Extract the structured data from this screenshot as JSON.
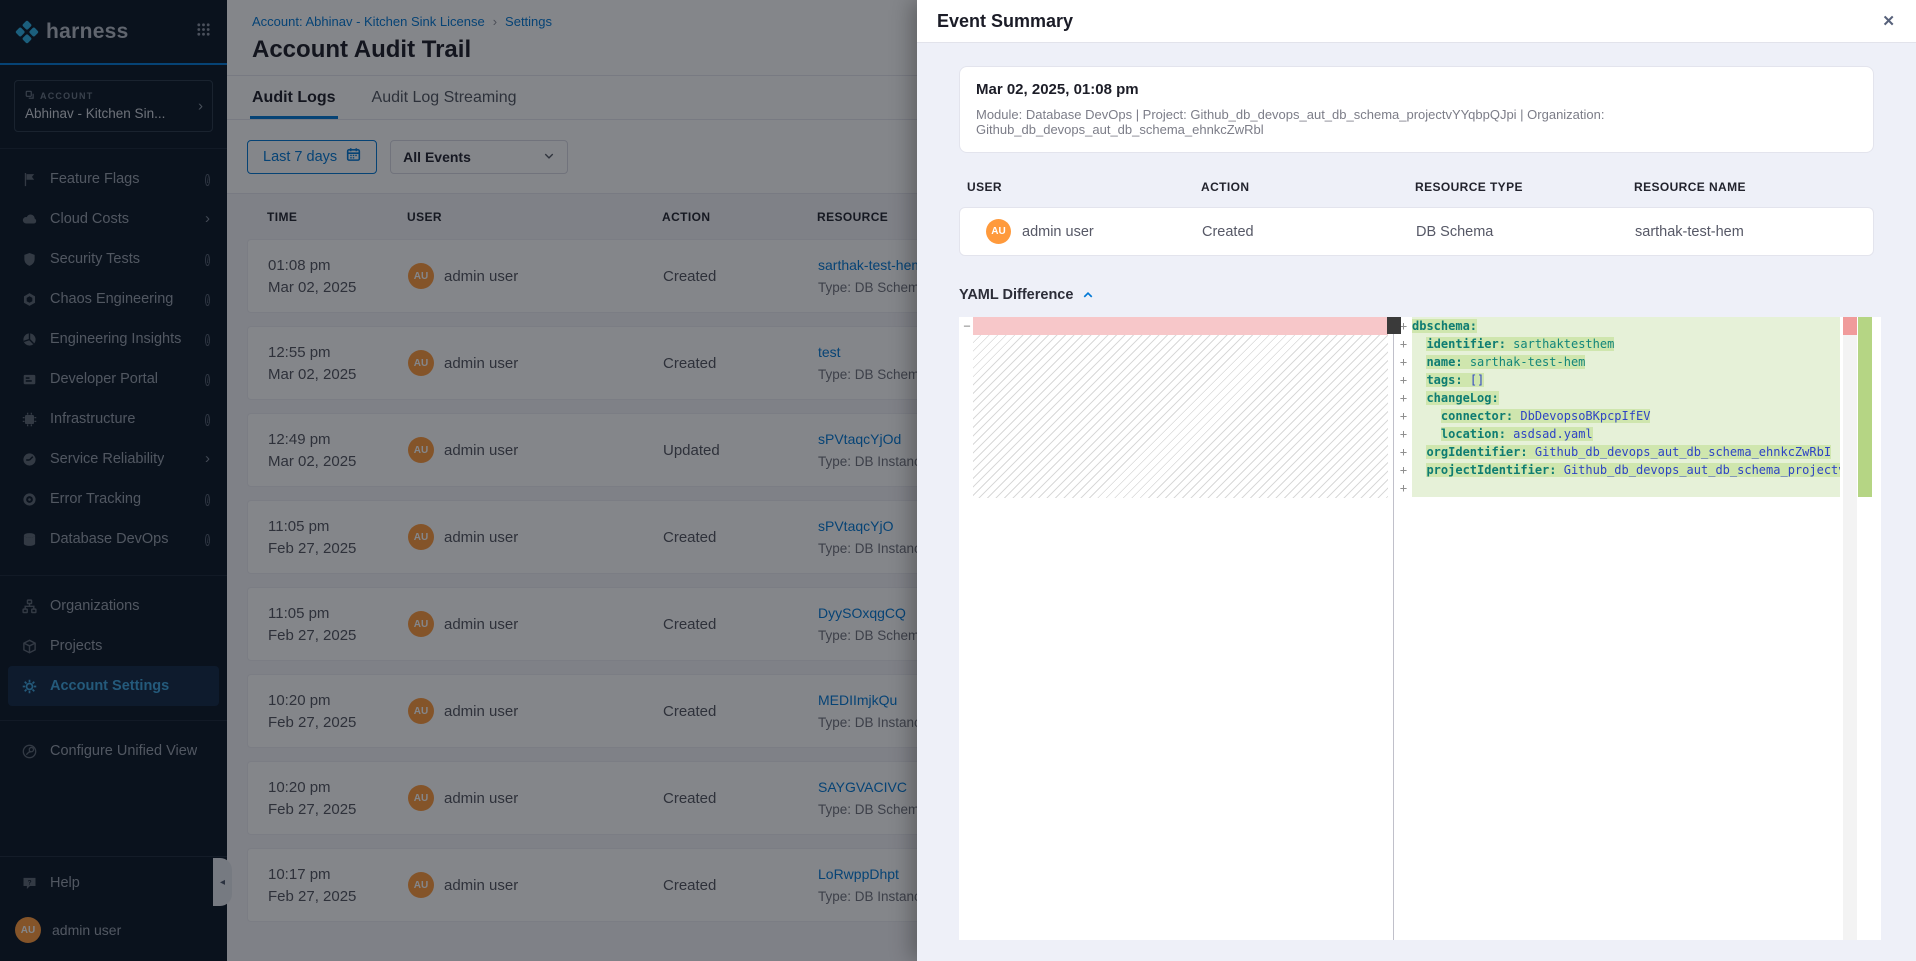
{
  "colors": {
    "accent": "#0278d5",
    "sidebar_bg": "#0a1625",
    "drawer_bg": "#eef0f8",
    "avatar_orange": "#ff9a3c",
    "diff_added_line": "#e6f1d8",
    "diff_added_chunk": "#cfe6ae",
    "diff_removed": "#f7c7c9",
    "ruler_red": "#f09b9b",
    "ruler_green": "#b5d584",
    "active_nav": "#3ea6e0"
  },
  "sidebar": {
    "logo_text": "harness",
    "account_chip": {
      "label": "ACCOUNT",
      "name": "Abhinav - Kitchen Sin...",
      "chevron": "›"
    },
    "nav": [
      {
        "label": "Feature Flags",
        "icon": "flag-icon",
        "trailing": "info"
      },
      {
        "label": "Cloud Costs",
        "icon": "cloud-icon",
        "trailing": "chevron"
      },
      {
        "label": "Security Tests",
        "icon": "shield-icon",
        "trailing": "info"
      },
      {
        "label": "Chaos Engineering",
        "icon": "chaos-icon",
        "trailing": "info"
      },
      {
        "label": "Engineering Insights",
        "icon": "insights-icon",
        "trailing": "info"
      },
      {
        "label": "Developer Portal",
        "icon": "portal-icon",
        "trailing": "info"
      },
      {
        "label": "Infrastructure",
        "icon": "infrastructure-icon",
        "trailing": "info"
      },
      {
        "label": "Service Reliability",
        "icon": "reliability-icon",
        "trailing": "chevron"
      },
      {
        "label": "Error Tracking",
        "icon": "error-tracking-icon",
        "trailing": "info"
      },
      {
        "label": "Database DevOps",
        "icon": "database-icon",
        "trailing": "info"
      }
    ],
    "settings_nav": [
      {
        "label": "Organizations",
        "icon": "organizations-icon",
        "active": false
      },
      {
        "label": "Projects",
        "icon": "projects-icon",
        "active": false
      },
      {
        "label": "Account Settings",
        "icon": "gear-icon",
        "active": true
      }
    ],
    "configure_label": "Configure Unified View",
    "help_label": "Help",
    "user": {
      "initials": "AU",
      "name": "admin user"
    }
  },
  "main": {
    "breadcrumb": {
      "account": "Account: Abhinav - Kitchen Sink License",
      "separator": "›",
      "settings": "Settings"
    },
    "title": "Account Audit Trail",
    "tabs": [
      {
        "label": "Audit Logs",
        "active": true
      },
      {
        "label": "Audit Log Streaming",
        "active": false
      }
    ],
    "filters": {
      "date_range": "Last 7 days",
      "date_icon": "calendar-icon",
      "events": "All Events",
      "events_icon": "chevron-down-icon"
    },
    "table": {
      "headers": [
        "TIME",
        "USER",
        "ACTION",
        "RESOURCE"
      ],
      "rows": [
        {
          "time": "01:08 pm",
          "date": "Mar 02, 2025",
          "user": "admin user",
          "initials": "AU",
          "action": "Created",
          "resource": "sarthak-test-hem",
          "resource_type": "Type: DB Schema"
        },
        {
          "time": "12:55 pm",
          "date": "Mar 02, 2025",
          "user": "admin user",
          "initials": "AU",
          "action": "Created",
          "resource": "test",
          "resource_type": "Type: DB Schema"
        },
        {
          "time": "12:49 pm",
          "date": "Mar 02, 2025",
          "user": "admin user",
          "initials": "AU",
          "action": "Updated",
          "resource": "sPVtaqcYjOd",
          "resource_type": "Type: DB Instance"
        },
        {
          "time": "11:05 pm",
          "date": "Feb 27, 2025",
          "user": "admin user",
          "initials": "AU",
          "action": "Created",
          "resource": "sPVtaqcYjO",
          "resource_type": "Type: DB Instance"
        },
        {
          "time": "11:05 pm",
          "date": "Feb 27, 2025",
          "user": "admin user",
          "initials": "AU",
          "action": "Created",
          "resource": "DyySOxqgCQ",
          "resource_type": "Type: DB Schema"
        },
        {
          "time": "10:20 pm",
          "date": "Feb 27, 2025",
          "user": "admin user",
          "initials": "AU",
          "action": "Created",
          "resource": "MEDIImjkQu",
          "resource_type": "Type: DB Instance"
        },
        {
          "time": "10:20 pm",
          "date": "Feb 27, 2025",
          "user": "admin user",
          "initials": "AU",
          "action": "Created",
          "resource": "SAYGVACIVC",
          "resource_type": "Type: DB Schema"
        },
        {
          "time": "10:17 pm",
          "date": "Feb 27, 2025",
          "user": "admin user",
          "initials": "AU",
          "action": "Created",
          "resource": "LoRwppDhpt",
          "resource_type": "Type: DB Instance"
        }
      ]
    }
  },
  "drawer": {
    "title": "Event Summary",
    "close_icon": "✕",
    "event": {
      "datetime": "Mar 02, 2025, 01:08 pm",
      "meta": "Module: Database DevOps | Project: Github_db_devops_aut_db_schema_projectvYYqbpQJpi | Organization: Github_db_devops_aut_db_schema_ehnkcZwRbl"
    },
    "summary_table": {
      "headers": [
        "USER",
        "ACTION",
        "RESOURCE TYPE",
        "RESOURCE NAME"
      ],
      "row": {
        "initials": "AU",
        "user": "admin user",
        "action": "Created",
        "resource_type": "DB Schema",
        "resource_name": "sarthak-test-hem"
      }
    },
    "yaml_section": {
      "label": "YAML Difference",
      "collapse_icon": "chevron-up-icon",
      "removed_marker": "−",
      "added_marker": "+",
      "lines": [
        {
          "indent": 0,
          "tokens": [
            [
              "k",
              "dbschema:"
            ]
          ]
        },
        {
          "indent": 2,
          "tokens": [
            [
              "k",
              "identifier:"
            ],
            [
              "s",
              " "
            ],
            [
              "t",
              "sarthaktesthem"
            ]
          ]
        },
        {
          "indent": 2,
          "tokens": [
            [
              "k",
              "name:"
            ],
            [
              "s",
              " "
            ],
            [
              "t",
              "sarthak-test-hem"
            ]
          ]
        },
        {
          "indent": 2,
          "tokens": [
            [
              "k",
              "tags:"
            ],
            [
              "s",
              " "
            ],
            [
              "b",
              "[]"
            ]
          ]
        },
        {
          "indent": 2,
          "tokens": [
            [
              "k",
              "changeLog:"
            ]
          ]
        },
        {
          "indent": 4,
          "tokens": [
            [
              "k",
              "connector:"
            ],
            [
              "s",
              " "
            ],
            [
              "b",
              "DbDevopsoBKpcpIfEV"
            ]
          ]
        },
        {
          "indent": 4,
          "tokens": [
            [
              "k",
              "location:"
            ],
            [
              "s",
              " "
            ],
            [
              "b",
              "asdsad.yaml"
            ]
          ]
        },
        {
          "indent": 2,
          "tokens": [
            [
              "k",
              "orgIdentifier:"
            ],
            [
              "s",
              " "
            ],
            [
              "b",
              "Github_db_devops_aut_db_schema_ehnkcZwRbI"
            ]
          ]
        },
        {
          "indent": 2,
          "tokens": [
            [
              "k",
              "projectIdentifier:"
            ],
            [
              "s",
              " "
            ],
            [
              "b",
              "Github_db_devops_aut_db_schema_projectv"
            ]
          ]
        },
        {
          "indent": 0,
          "tokens": []
        }
      ]
    }
  }
}
